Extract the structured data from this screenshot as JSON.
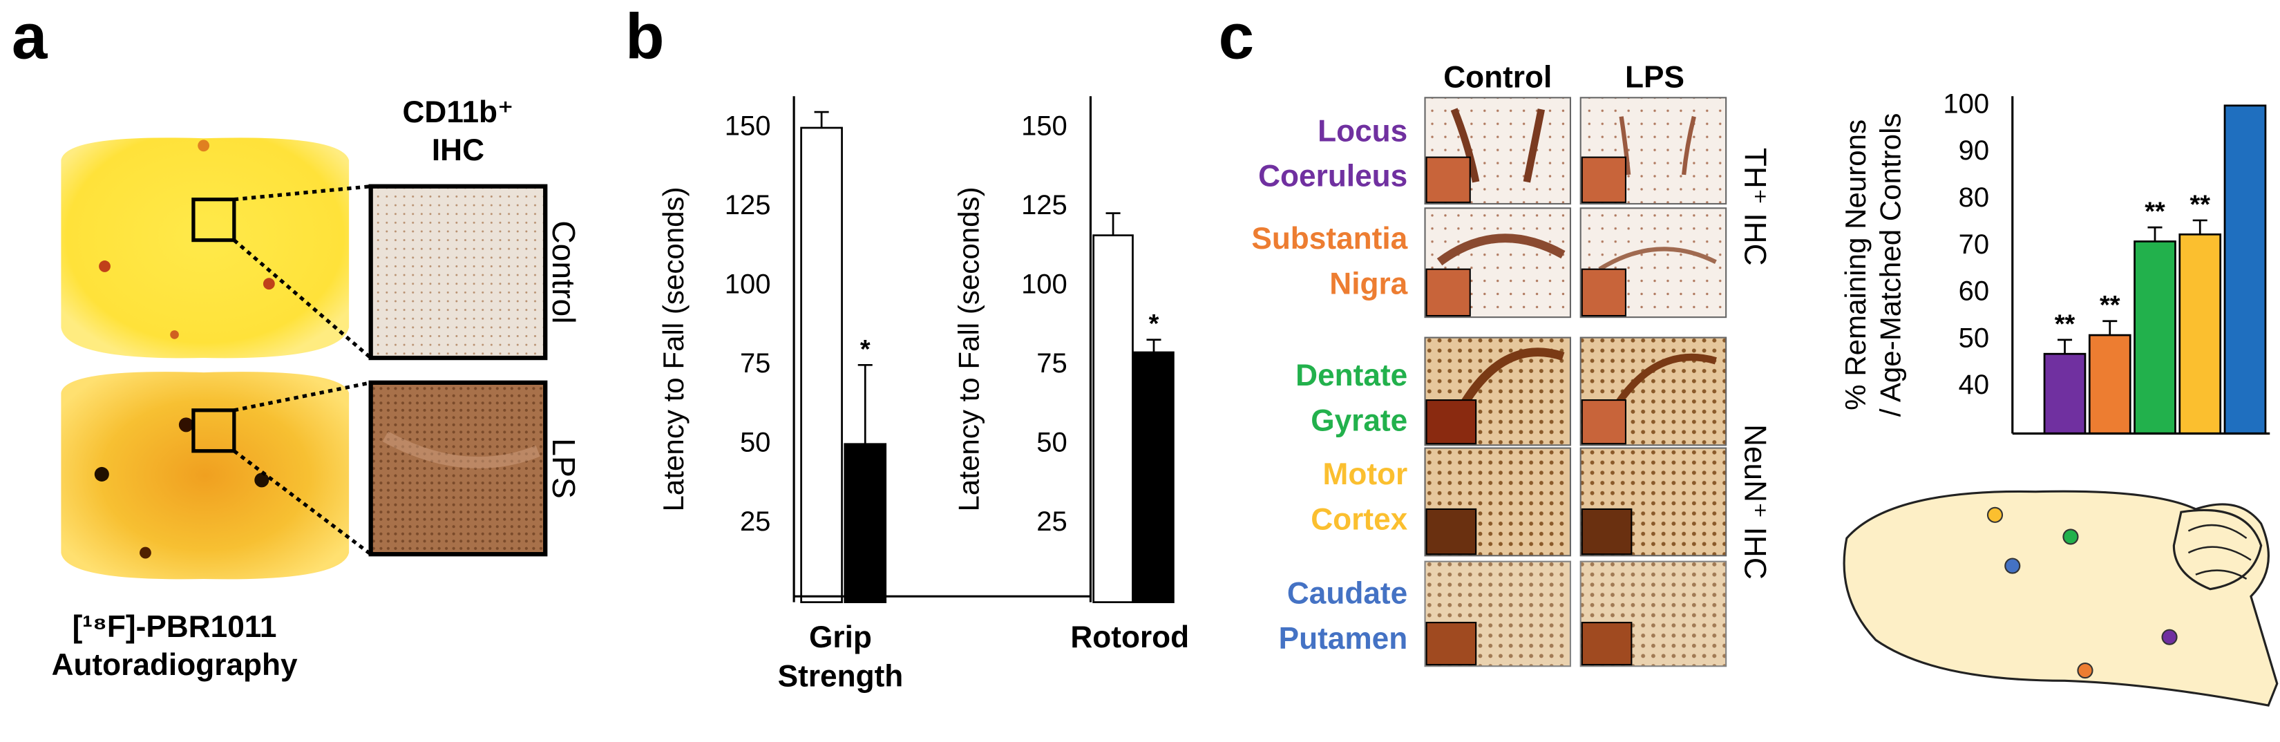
{
  "panels": {
    "a": {
      "label": "a",
      "stain": "CD11b⁺\nIHC",
      "rows": [
        "Control",
        "LPS"
      ],
      "caption": "[¹⁸F]-PBR1011\nAutoradiography"
    },
    "b": {
      "label": "b"
    },
    "c": {
      "label": "c",
      "columns": [
        "Control",
        "LPS"
      ],
      "regions": [
        {
          "name": "Locus\nCoeruleus",
          "color": "#7030a0"
        },
        {
          "name": "Substantia\nNigra",
          "color": "#ed7d31"
        },
        {
          "name": "Dentate\nGyrate",
          "color": "#22b14c"
        },
        {
          "name": "Motor\nCortex",
          "color": "#fbbf2f"
        },
        {
          "name": "Caudate\nPutamen",
          "color": "#4472c4"
        }
      ],
      "stains": [
        "TH⁺ IHC",
        "NeuN⁺ IHC"
      ]
    }
  },
  "chart_data": [
    {
      "type": "bar",
      "ylabel": "Latency to Fall  (seconds)",
      "xlabel": "Grip\nStrength",
      "categories": [
        null,
        null
      ],
      "values": [
        150,
        50
      ],
      "errors": [
        5,
        25
      ],
      "colors": [
        "#ffffff",
        "#000000"
      ],
      "annotations": [
        null,
        "*"
      ],
      "ylim": [
        0,
        160
      ],
      "yticks": [
        25,
        50,
        75,
        100,
        125,
        150
      ]
    },
    {
      "type": "bar",
      "ylabel": "Latency to Fall  (seconds)",
      "xlabel": "Rotorod",
      "categories": [
        null,
        null
      ],
      "values": [
        116,
        79
      ],
      "errors": [
        7,
        4
      ],
      "colors": [
        "#ffffff",
        "#000000"
      ],
      "annotations": [
        null,
        "*"
      ],
      "ylim": [
        0,
        160
      ],
      "yticks": [
        25,
        50,
        75,
        100,
        125,
        150
      ]
    },
    {
      "type": "bar",
      "ylabel": "% Remaining Neurons\n/ Age-Matched Controls",
      "categories": [
        null,
        null,
        null,
        null,
        null
      ],
      "values": [
        47,
        51,
        71,
        72.5,
        100
      ],
      "errors": [
        3,
        3,
        3,
        3,
        0
      ],
      "colors": [
        "#7030a0",
        "#ed7d31",
        "#22b14c",
        "#fbbf2f",
        "#1f6fbf"
      ],
      "annotations": [
        "**",
        "**",
        "**",
        "**",
        null
      ],
      "ylim": [
        30,
        102
      ],
      "yticks": [
        40,
        50,
        60,
        70,
        80,
        90,
        100
      ]
    }
  ]
}
